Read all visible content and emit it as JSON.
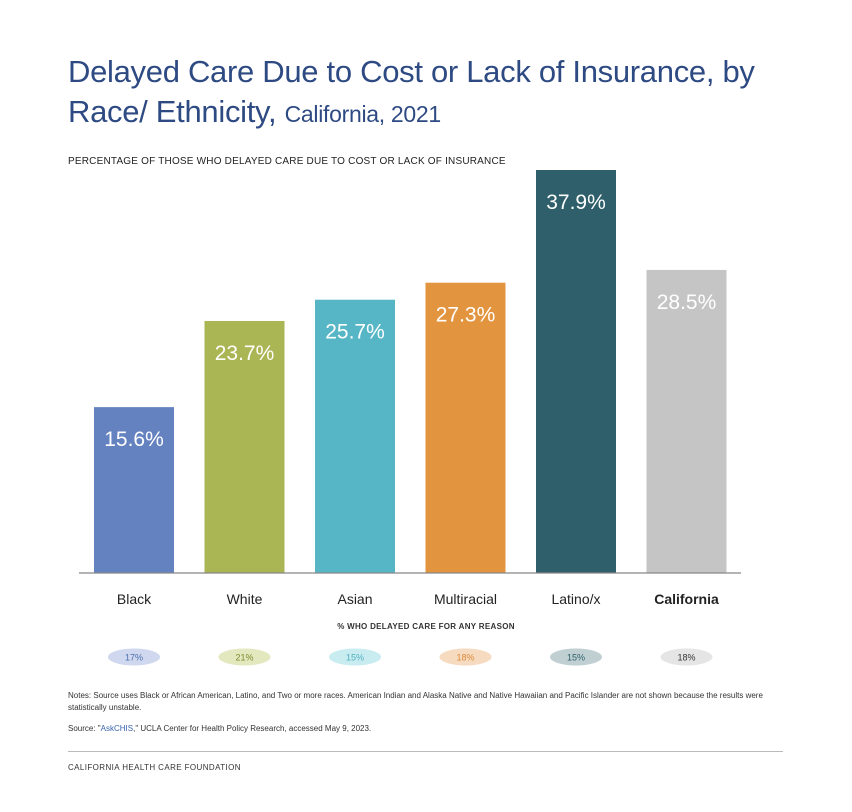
{
  "title": {
    "main": "Delayed Care Due to Cost or Lack of Insurance, by Race/ Ethnicity,",
    "sub": "California, 2021"
  },
  "subtitle": "PERCENTAGE OF THOSE WHO DELAYED CARE DUE TO COST OR LACK OF INSURANCE",
  "chart_data": {
    "type": "bar",
    "categories": [
      "Black",
      "White",
      "Asian",
      "Multiracial",
      "Latino/x",
      "California"
    ],
    "values": [
      15.6,
      23.7,
      25.7,
      27.3,
      37.9,
      28.5
    ],
    "value_labels": [
      "15.6%",
      "23.7%",
      "25.7%",
      "27.3%",
      "37.9%",
      "28.5%"
    ],
    "bold_category": "California",
    "colors": [
      "#6482c0",
      "#aab553",
      "#56b6c5",
      "#e3943f",
      "#2e5f6a",
      "#c5c5c5"
    ],
    "ylim": [
      0,
      40
    ],
    "grid": false,
    "any_reason": {
      "title": "% WHO DELAYED CARE FOR ANY REASON",
      "labels": [
        "17%",
        "21%",
        "15%",
        "18%",
        "15%",
        "18%"
      ],
      "fill_colors": [
        "#cfd8ee",
        "#e3e8bf",
        "#c9ecf0",
        "#f6dbc0",
        "#bfcfd2",
        "#e5e5e5"
      ],
      "text_colors": [
        "#4f6fb0",
        "#7f8a2f",
        "#4fb2c1",
        "#d98a3a",
        "#2e5f6a",
        "#333333"
      ]
    }
  },
  "notes": {
    "label": "Notes:",
    "text": "Source uses Black or African American, Latino, and Two or more races. American Indian and Alaska Native and Native Hawaiian and Pacific Islander are not shown because the results were statistically unstable."
  },
  "source": {
    "prefix": "Source: \"",
    "link": "AskCHIS",
    "suffix": ",\" UCLA Center for Health Policy Research, accessed May 9, 2023."
  },
  "footer": "CALIFORNIA HEALTH CARE FOUNDATION"
}
